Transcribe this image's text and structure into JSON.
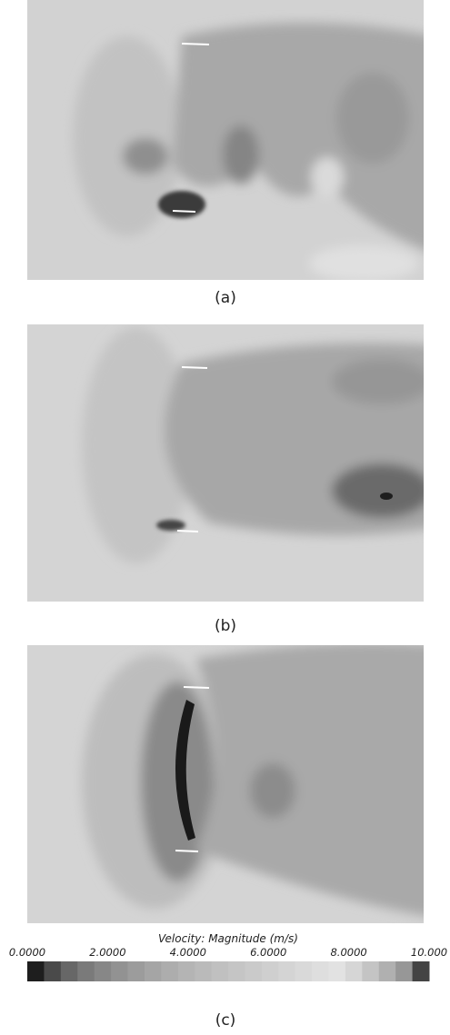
{
  "panels": [
    {
      "caption": "(a)"
    },
    {
      "caption": "(b)"
    },
    {
      "caption": "(c)"
    }
  ],
  "colorbar": {
    "title": "Velocity: Magnitude (m/s)",
    "range": [
      0,
      10
    ],
    "ticks": [
      {
        "value": 0,
        "label": "0.0000"
      },
      {
        "value": 2,
        "label": "2.0000"
      },
      {
        "value": 4,
        "label": "4.0000"
      },
      {
        "value": 6,
        "label": "6.0000"
      },
      {
        "value": 8,
        "label": "8.0000"
      },
      {
        "value": 10,
        "label": "10.000"
      }
    ],
    "colors": [
      "#1e1e1e",
      "#4a4a4a",
      "#676767",
      "#7a7a7a",
      "#878787",
      "#929292",
      "#9c9c9c",
      "#a5a5a5",
      "#adadad",
      "#b4b4b4",
      "#bababa",
      "#c0c0c0",
      "#c5c5c5",
      "#cacaca",
      "#cfcfcf",
      "#d4d4d4",
      "#d9d9d9",
      "#dedede",
      "#e2e2e2",
      "#d6d6d6",
      "#c4c4c4",
      "#b0b0b0",
      "#979797",
      "#444444"
    ]
  }
}
